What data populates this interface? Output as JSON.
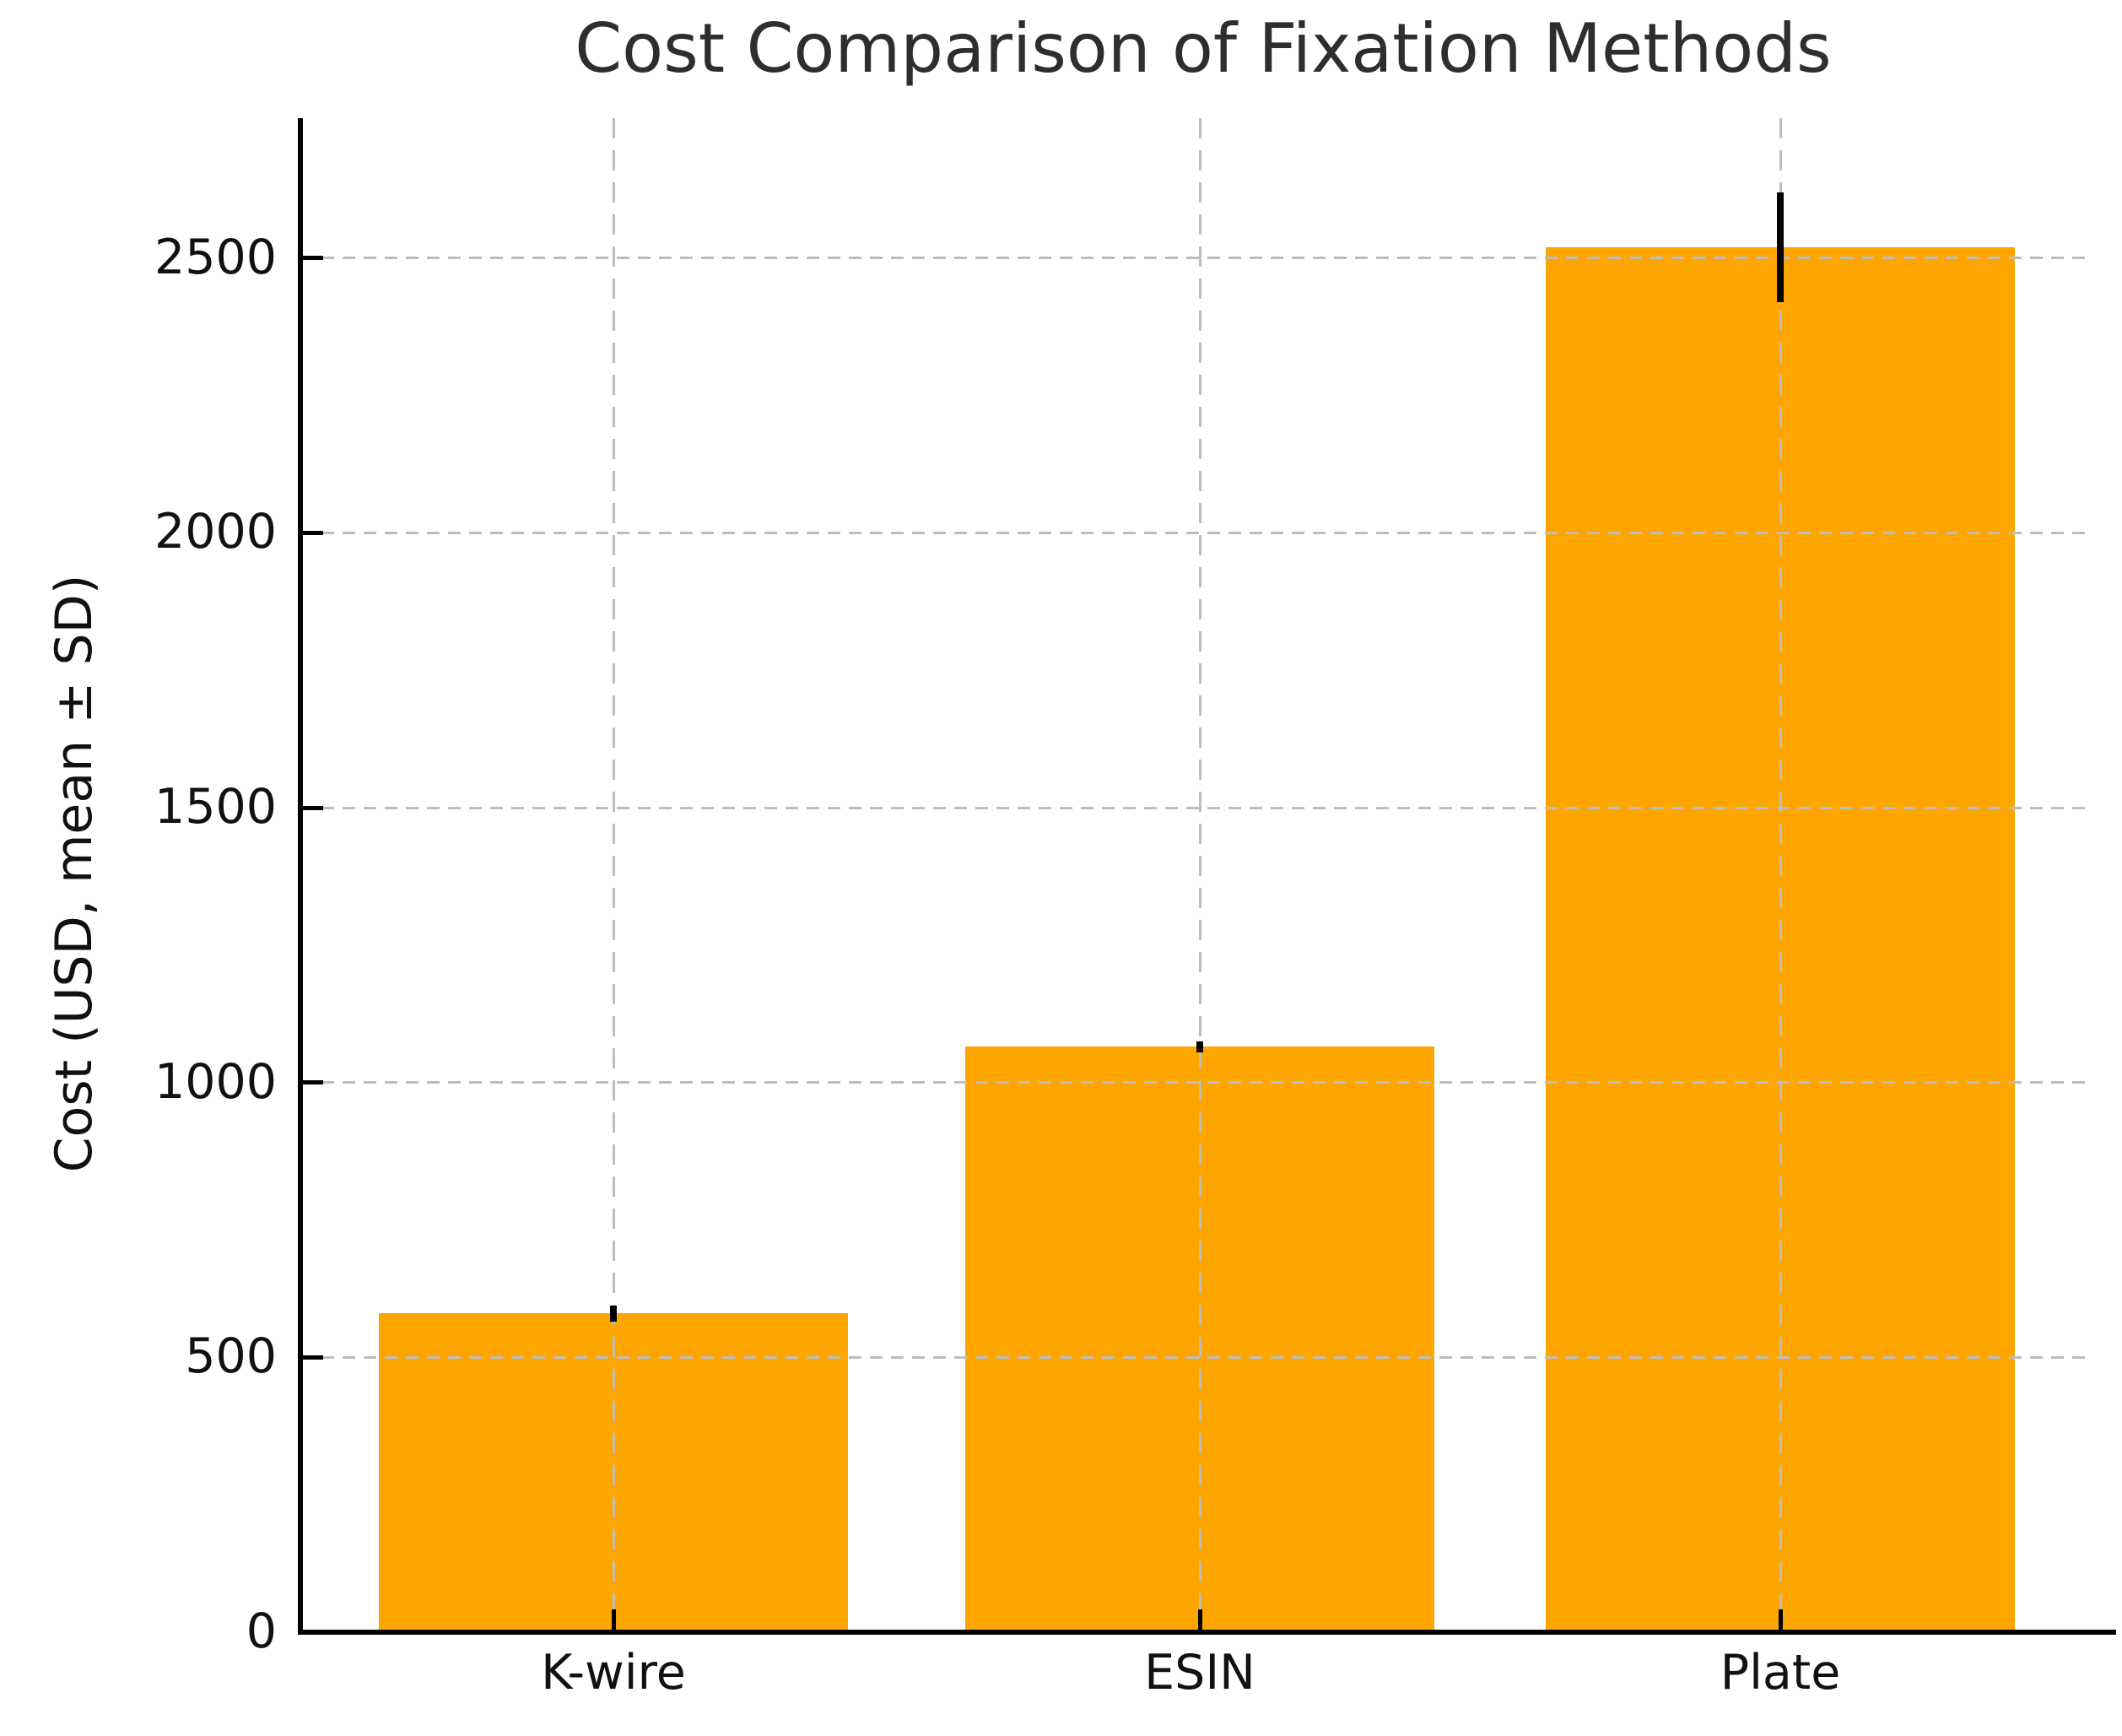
{
  "chart_data": {
    "type": "bar",
    "title": "Cost Comparison of Fixation Methods",
    "xlabel": "",
    "ylabel": "Cost (USD, mean ± SD)",
    "categories": [
      "K-wire",
      "ESIN",
      "Plate"
    ],
    "values": [
      580,
      1065,
      2520
    ],
    "errors_sd": [
      15,
      10,
      100
    ],
    "yticks": [
      0,
      500,
      1000,
      1500,
      2000,
      2500
    ],
    "ytick_labels": [
      "0",
      "500",
      "1000",
      "1500",
      "2000",
      "2500"
    ],
    "ylim": [
      0,
      2755
    ],
    "legend": "none",
    "grid": {
      "visible": true,
      "style": "dashed",
      "axes": "both",
      "above_bars": true
    },
    "colors": {
      "bar": "#FFA500",
      "error_bar": "#000000",
      "grid": "#bdbdbd",
      "spine": "#000000",
      "text": "#111111",
      "title": "#2e2e2e",
      "background": "#ffffff"
    }
  }
}
